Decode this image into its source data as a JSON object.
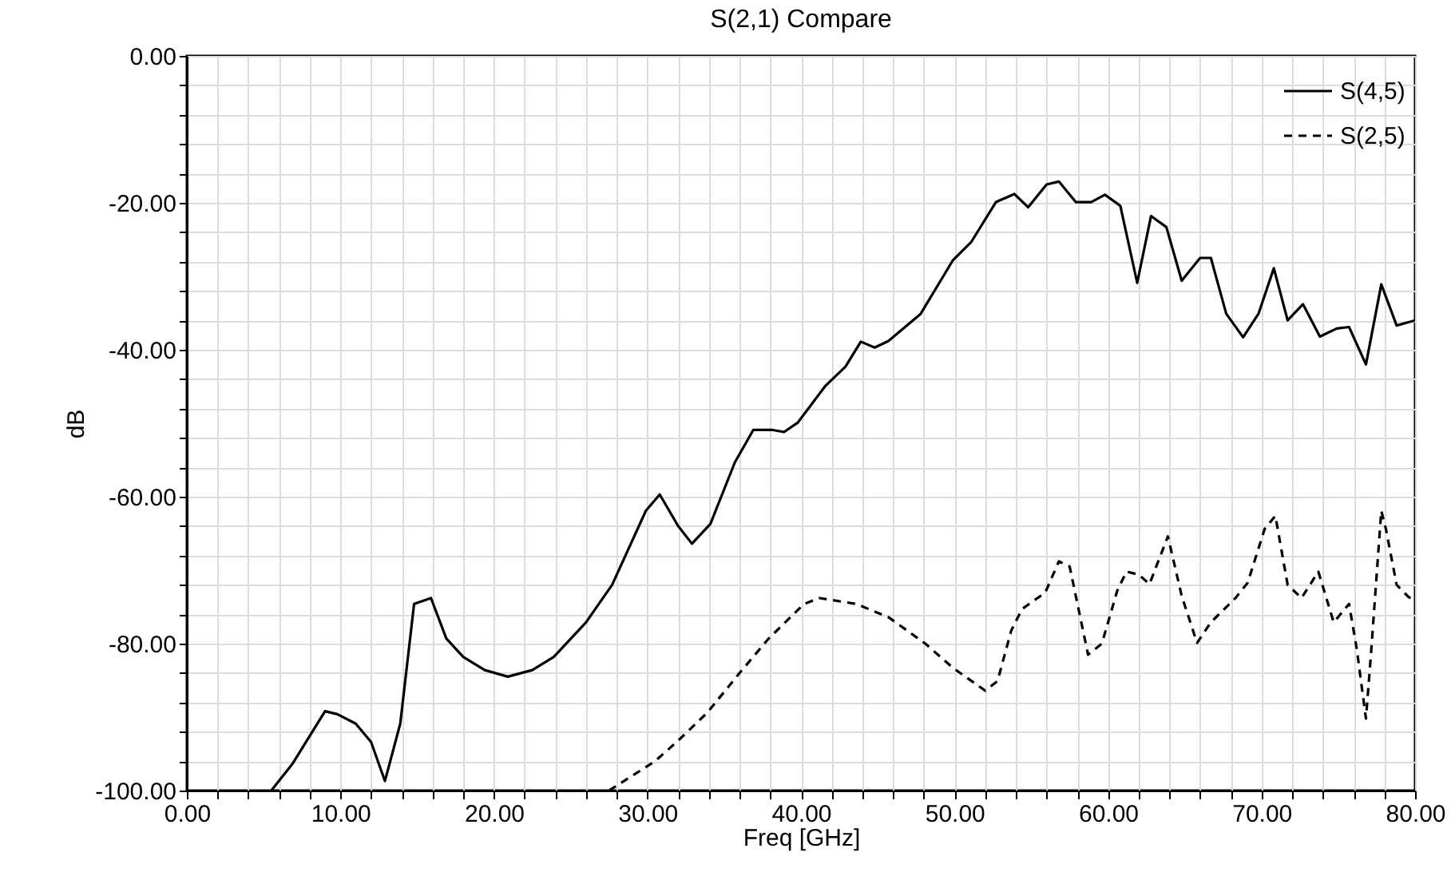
{
  "chart_data": {
    "type": "line",
    "title": "S(2,1) Compare",
    "xlabel": "Freq [GHz]",
    "ylabel": "dB",
    "xlim": [
      0,
      80
    ],
    "xticks": [
      {
        "value": 0,
        "label": "0.00"
      },
      {
        "value": 2,
        "label": null
      },
      {
        "value": 4,
        "label": null
      },
      {
        "value": 6,
        "label": null
      },
      {
        "value": 8,
        "label": null
      },
      {
        "value": 10,
        "label": "10.00"
      },
      {
        "value": 12,
        "label": null
      },
      {
        "value": 14,
        "label": null
      },
      {
        "value": 16,
        "label": null
      },
      {
        "value": 18,
        "label": null
      },
      {
        "value": 20,
        "label": "20.00"
      },
      {
        "value": 22,
        "label": null
      },
      {
        "value": 24,
        "label": null
      },
      {
        "value": 26,
        "label": null
      },
      {
        "value": 28,
        "label": null
      },
      {
        "value": 30,
        "label": "30.00"
      },
      {
        "value": 32,
        "label": null
      },
      {
        "value": 34,
        "label": null
      },
      {
        "value": 36,
        "label": null
      },
      {
        "value": 38,
        "label": null
      },
      {
        "value": 40,
        "label": "40.00"
      },
      {
        "value": 42,
        "label": null
      },
      {
        "value": 44,
        "label": null
      },
      {
        "value": 46,
        "label": null
      },
      {
        "value": 48,
        "label": null
      },
      {
        "value": 50,
        "label": "50.00"
      },
      {
        "value": 52,
        "label": null
      },
      {
        "value": 54,
        "label": null
      },
      {
        "value": 56,
        "label": null
      },
      {
        "value": 58,
        "label": null
      },
      {
        "value": 60,
        "label": "60.00"
      },
      {
        "value": 62,
        "label": null
      },
      {
        "value": 64,
        "label": null
      },
      {
        "value": 66,
        "label": null
      },
      {
        "value": 68,
        "label": null
      },
      {
        "value": 70,
        "label": "70.00"
      },
      {
        "value": 72,
        "label": null
      },
      {
        "value": 74,
        "label": null
      },
      {
        "value": 76,
        "label": null
      },
      {
        "value": 78,
        "label": null
      },
      {
        "value": 80,
        "label": "80.00"
      }
    ],
    "ylim": [
      -100,
      0
    ],
    "yticks": [
      {
        "value": -100,
        "label": "-100.00"
      },
      {
        "value": -96,
        "label": null
      },
      {
        "value": -92,
        "label": null
      },
      {
        "value": -88,
        "label": null
      },
      {
        "value": -84,
        "label": null
      },
      {
        "value": -80,
        "label": "-80.00"
      },
      {
        "value": -76,
        "label": null
      },
      {
        "value": -72,
        "label": null
      },
      {
        "value": -68,
        "label": null
      },
      {
        "value": -64,
        "label": null
      },
      {
        "value": -60,
        "label": "-60.00"
      },
      {
        "value": -56,
        "label": null
      },
      {
        "value": -52,
        "label": null
      },
      {
        "value": -48,
        "label": null
      },
      {
        "value": -44,
        "label": null
      },
      {
        "value": -40,
        "label": "-40.00"
      },
      {
        "value": -36,
        "label": null
      },
      {
        "value": -32,
        "label": null
      },
      {
        "value": -28,
        "label": null
      },
      {
        "value": -24,
        "label": null
      },
      {
        "value": -20,
        "label": "-20.00"
      },
      {
        "value": -16,
        "label": null
      },
      {
        "value": -12,
        "label": null
      },
      {
        "value": -8,
        "label": null
      },
      {
        "value": -4,
        "label": null
      },
      {
        "value": 0,
        "label": "0.00"
      }
    ],
    "grid": true,
    "legend": "top right",
    "series": [
      {
        "name": "S(4,5)",
        "color": "#000000",
        "line_style": "solid",
        "x": [
          5.5,
          6.9,
          9.0,
          9.8,
          11.0,
          12.0,
          12.9,
          13.9,
          14.8,
          15.9,
          16.9,
          18.0,
          19.4,
          20.9,
          22.5,
          23.9,
          26.0,
          27.7,
          29.9,
          30.8,
          32.0,
          32.9,
          34.1,
          35.7,
          36.9,
          38.1,
          38.9,
          39.8,
          41.6,
          42.9,
          43.9,
          44.8,
          45.7,
          47.8,
          49.9,
          51.1,
          52.7,
          53.9,
          54.8,
          56.0,
          56.8,
          57.9,
          58.9,
          59.8,
          60.8,
          61.9,
          62.8,
          63.8,
          64.8,
          66.0,
          66.7,
          67.7,
          68.8,
          69.8,
          70.8,
          71.7,
          72.7,
          73.8,
          74.9,
          75.7,
          76.8,
          77.8,
          78.8,
          80.0
        ],
        "values": [
          -100,
          -96.3,
          -89.2,
          -89.6,
          -90.9,
          -93.4,
          -98.7,
          -90.9,
          -74.6,
          -73.8,
          -79.3,
          -81.8,
          -83.6,
          -84.5,
          -83.6,
          -81.8,
          -77.1,
          -72.0,
          -61.9,
          -59.7,
          -64.0,
          -66.4,
          -63.7,
          -55.3,
          -50.9,
          -50.9,
          -51.2,
          -49.9,
          -44.9,
          -42.3,
          -38.9,
          -39.7,
          -38.8,
          -35.1,
          -27.8,
          -25.3,
          -19.9,
          -18.8,
          -20.6,
          -17.5,
          -17.1,
          -19.9,
          -19.9,
          -18.9,
          -20.4,
          -30.9,
          -21.8,
          -23.3,
          -30.6,
          -27.5,
          -27.5,
          -35.1,
          -38.3,
          -35.1,
          -28.9,
          -36.0,
          -33.8,
          -38.2,
          -37.1,
          -36.9,
          -42.0,
          -31.1,
          -36.7,
          -36.0
        ]
      },
      {
        "name": "S(2,5)",
        "color": "#000000",
        "line_style": "dashed",
        "x": [
          27.5,
          30.5,
          32.0,
          33.9,
          36.0,
          37.9,
          40.2,
          41.2,
          43.6,
          45.7,
          48.1,
          49.9,
          52.0,
          52.8,
          53.7,
          54.4,
          55.4,
          55.9,
          56.8,
          57.5,
          58.7,
          59.6,
          60.6,
          61.2,
          62.0,
          62.7,
          63.9,
          64.8,
          65.8,
          66.7,
          68.3,
          69.1,
          70.2,
          70.9,
          71.7,
          72.6,
          73.7,
          74.7,
          75.7,
          76.2,
          76.8,
          77.1,
          77.8,
          78.1,
          78.8,
          79.6,
          80.0
        ],
        "values": [
          -100,
          -96.0,
          -93.2,
          -89.4,
          -84.0,
          -79.3,
          -74.6,
          -73.8,
          -74.6,
          -76.4,
          -80.0,
          -83.3,
          -86.4,
          -85.1,
          -78.2,
          -75.3,
          -73.8,
          -73.1,
          -68.8,
          -69.5,
          -81.5,
          -80.0,
          -72.8,
          -70.2,
          -70.6,
          -71.9,
          -65.4,
          -73.5,
          -79.9,
          -77.1,
          -73.8,
          -71.7,
          -64.4,
          -62.6,
          -72.0,
          -73.8,
          -70.2,
          -77.1,
          -74.6,
          -80.7,
          -90.2,
          -82.2,
          -61.9,
          -64.4,
          -72.0,
          -73.7,
          -74.0
        ]
      }
    ]
  }
}
